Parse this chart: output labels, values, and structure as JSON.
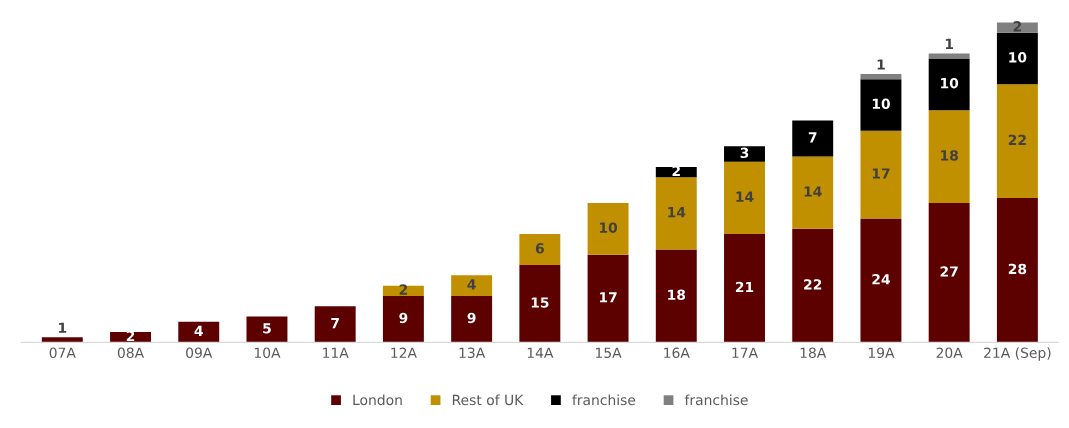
{
  "chart_data": {
    "type": "bar",
    "stacked": true,
    "data_labels": true,
    "legend": "bottom",
    "grid": false,
    "tick_labels": "x",
    "categories": [
      "07A",
      "08A",
      "09A",
      "10A",
      "11A",
      "12A",
      "13A",
      "14A",
      "15A",
      "16A",
      "17A",
      "18A",
      "19A",
      "20A",
      "21A (Sep)"
    ],
    "series": [
      {
        "name": "London",
        "color": "#5c0000",
        "values": [
          1,
          2,
          4,
          5,
          7,
          9,
          9,
          15,
          17,
          18,
          21,
          22,
          24,
          27,
          28
        ]
      },
      {
        "name": "Rest of UK",
        "color": "#c09000",
        "values": [
          null,
          null,
          null,
          null,
          null,
          2,
          4,
          6,
          10,
          14,
          14,
          14,
          17,
          18,
          22
        ]
      },
      {
        "name": "franchise",
        "color": "#000000",
        "values": [
          null,
          null,
          null,
          null,
          null,
          null,
          null,
          null,
          null,
          2,
          3,
          7,
          10,
          10,
          10
        ]
      },
      {
        "name": "franchise",
        "color": "#808080",
        "values": [
          null,
          null,
          null,
          null,
          null,
          null,
          null,
          null,
          null,
          null,
          null,
          null,
          1,
          1,
          2
        ]
      }
    ]
  }
}
